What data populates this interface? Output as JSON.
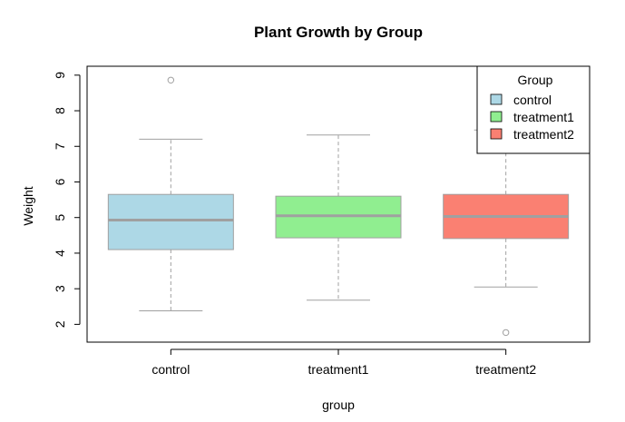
{
  "chart_data": {
    "type": "box",
    "title": "Plant Growth by Group",
    "xlabel": "group",
    "ylabel": "Weight",
    "ylim": [
      1.5,
      9.25
    ],
    "yticks": [
      "2",
      "3",
      "4",
      "5",
      "6",
      "7",
      "8",
      "9"
    ],
    "categories": [
      "control",
      "treatment1",
      "treatment2"
    ],
    "boxes": [
      {
        "name": "control",
        "whisker_low": 2.38,
        "q1": 4.1,
        "median": 4.93,
        "q3": 5.65,
        "whisker_high": 7.2,
        "outliers": [
          8.86
        ],
        "color": "#ADD8E6"
      },
      {
        "name": "treatment1",
        "whisker_low": 2.68,
        "q1": 4.43,
        "median": 5.05,
        "q3": 5.6,
        "whisker_high": 7.32,
        "outliers": [],
        "color": "#90EE90"
      },
      {
        "name": "treatment2",
        "whisker_low": 3.05,
        "q1": 4.41,
        "median": 5.03,
        "q3": 5.65,
        "whisker_high": 7.46,
        "outliers": [
          1.77
        ],
        "color": "#FA8072"
      }
    ],
    "legend": {
      "title": "Group",
      "position": "top-right",
      "entries": [
        {
          "label": "control",
          "color": "#ADD8E6"
        },
        {
          "label": "treatment1",
          "color": "#90EE90"
        },
        {
          "label": "treatment2",
          "color": "#FA8072"
        }
      ]
    },
    "colors": {
      "median": "#A0A0A0",
      "whisker": "#A0A0A0",
      "box_border": "#A0A0A0",
      "frame": "#000000"
    }
  }
}
